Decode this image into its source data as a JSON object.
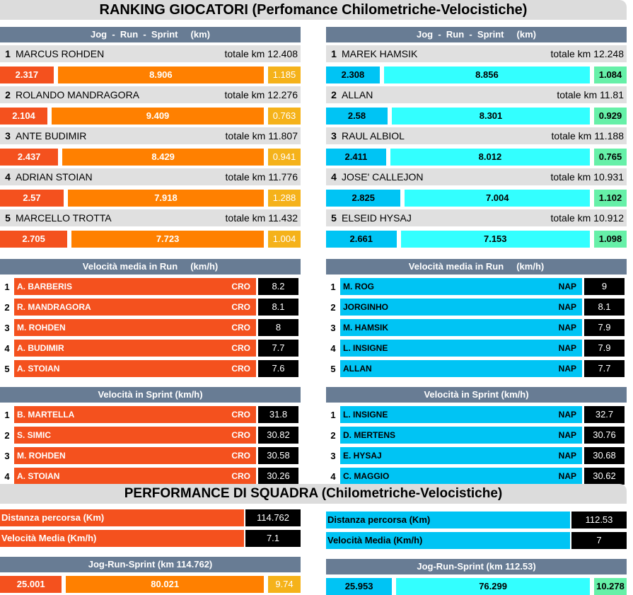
{
  "title": "RANKING GIOCATORI (Perfomance Chilometriche-Velocistiche)",
  "team_title": "PERFORMANCE DI SQUADRA (Chilometriche-Velocistiche)",
  "colors": {
    "header": "#687c94",
    "cro_jog": "#f4511e",
    "cro_run": "#ff8000",
    "cro_sprint": "#f5b21a",
    "nap_jog": "#00c4f4",
    "nap_run": "#33ffff",
    "nap_sprint": "#66f0a8"
  },
  "teams": [
    {
      "side": "L",
      "km_header": "Jog  -  Run  -  Sprint     (km)",
      "players": [
        {
          "rank": "1",
          "name": "MARCUS ROHDEN",
          "total": "totale km 12.408",
          "jog": "2.317",
          "run": "8.906",
          "sprint": "1.185"
        },
        {
          "rank": "2",
          "name": "ROLANDO MANDRAGORA",
          "total": "totale km 12.276",
          "jog": "2.104",
          "run": "9.409",
          "sprint": "0.763"
        },
        {
          "rank": "3",
          "name": "ANTE BUDIMIR",
          "total": "totale km 11.807",
          "jog": "2.437",
          "run": "8.429",
          "sprint": "0.941"
        },
        {
          "rank": "4",
          "name": "ADRIAN STOIAN",
          "total": "totale km 11.776",
          "jog": "2.57",
          "run": "7.918",
          "sprint": "1.288"
        },
        {
          "rank": "5",
          "name": "MARCELLO TROTTA",
          "total": "totale km 11.432",
          "jog": "2.705",
          "run": "7.723",
          "sprint": "1.004"
        }
      ],
      "run_header": "Velocità media in Run     (km/h)",
      "run_speed": [
        {
          "rank": "1",
          "name": "A. BARBERIS",
          "team": "CRO",
          "value": "8.2"
        },
        {
          "rank": "2",
          "name": "R. MANDRAGORA",
          "team": "CRO",
          "value": "8.1"
        },
        {
          "rank": "3",
          "name": "M. ROHDEN",
          "team": "CRO",
          "value": "8"
        },
        {
          "rank": "4",
          "name": "A. BUDIMIR",
          "team": "CRO",
          "value": "7.7"
        },
        {
          "rank": "5",
          "name": "A. STOIAN",
          "team": "CRO",
          "value": "7.6"
        }
      ],
      "sprint_header": "Velocità in Sprint (km/h)",
      "sprint_speed": [
        {
          "rank": "1",
          "name": "B. MARTELLA",
          "team": "CRO",
          "value": "31.8"
        },
        {
          "rank": "2",
          "name": "S. SIMIC",
          "team": "CRO",
          "value": "30.82"
        },
        {
          "rank": "3",
          "name": "M. ROHDEN",
          "team": "CRO",
          "value": "30.58"
        },
        {
          "rank": "4",
          "name": "A. STOIAN",
          "team": "CRO",
          "value": "30.26"
        }
      ],
      "team_stats": [
        {
          "label": "Distanza percorsa (Km)",
          "value": "114.762"
        },
        {
          "label": "Velocità Media (Km/h)",
          "value": "7.1"
        }
      ],
      "jrs_header": "Jog-Run-Sprint (km 114.762)",
      "jrs": {
        "jog": "25.001",
        "run": "80.021",
        "sprint": "9.74"
      }
    },
    {
      "side": "R",
      "km_header": "Jog  -  Run  -  Sprint     (km)",
      "players": [
        {
          "rank": "1",
          "name": "MAREK HAMSIK",
          "total": "totale km 12.248",
          "jog": "2.308",
          "run": "8.856",
          "sprint": "1.084"
        },
        {
          "rank": "2",
          "name": " ALLAN",
          "total": "totale km 11.81",
          "jog": "2.58",
          "run": "8.301",
          "sprint": "0.929"
        },
        {
          "rank": "3",
          "name": "RAUL ALBIOL",
          "total": "totale km 11.188",
          "jog": "2.411",
          "run": "8.012",
          "sprint": "0.765"
        },
        {
          "rank": "4",
          "name": "JOSE' CALLEJON",
          "total": "totale km 10.931",
          "jog": "2.825",
          "run": "7.004",
          "sprint": "1.102"
        },
        {
          "rank": "5",
          "name": "ELSEID HYSAJ",
          "total": "totale km 10.912",
          "jog": "2.661",
          "run": "7.153",
          "sprint": "1.098"
        }
      ],
      "run_header": "Velocità media in Run     (km/h)",
      "run_speed": [
        {
          "rank": "1",
          "name": "M. ROG",
          "team": "NAP",
          "value": "9"
        },
        {
          "rank": "2",
          "name": "JORGINHO",
          "team": "NAP",
          "value": "8.1"
        },
        {
          "rank": "3",
          "name": "M. HAMSIK",
          "team": "NAP",
          "value": "7.9"
        },
        {
          "rank": "4",
          "name": "L. INSIGNE",
          "team": "NAP",
          "value": "7.9"
        },
        {
          "rank": "5",
          "name": "ALLAN",
          "team": "NAP",
          "value": "7.7"
        }
      ],
      "sprint_header": "Velocità in Sprint (km/h)",
      "sprint_speed": [
        {
          "rank": "1",
          "name": "L. INSIGNE",
          "team": "NAP",
          "value": "32.7"
        },
        {
          "rank": "2",
          "name": "D. MERTENS",
          "team": "NAP",
          "value": "30.76"
        },
        {
          "rank": "3",
          "name": "E. HYSAJ",
          "team": "NAP",
          "value": "30.68"
        },
        {
          "rank": "4",
          "name": "C. MAGGIO",
          "team": "NAP",
          "value": "30.62"
        }
      ],
      "team_stats": [
        {
          "label": "Distanza percorsa (Km)",
          "value": "112.53"
        },
        {
          "label": "Velocità Media (Km/h)",
          "value": "7"
        }
      ],
      "jrs_header": "Jog-Run-Sprint (km 112.53)",
      "jrs": {
        "jog": "25.953",
        "run": "76.299",
        "sprint": "10.278"
      }
    }
  ]
}
